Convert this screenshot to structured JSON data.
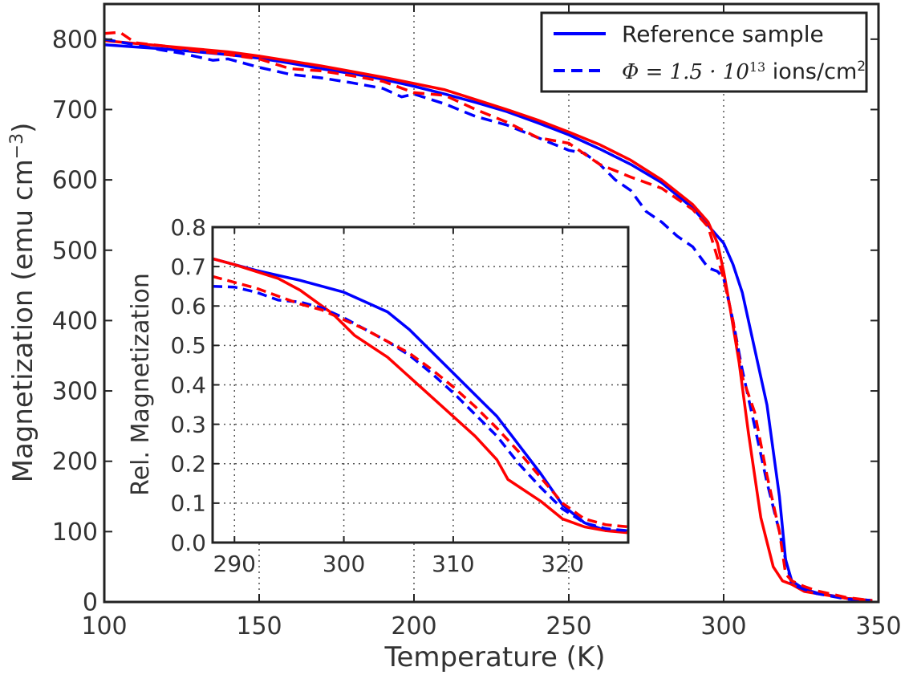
{
  "chart_data": [
    {
      "id": "main",
      "type": "line",
      "xlabel": "Temperature (K)",
      "ylabel_text": "Magnetization (emu cm",
      "ylabel_exp": "−3",
      "ylabel_close": ")",
      "xlim": [
        100,
        350
      ],
      "ylim": [
        0,
        850
      ],
      "xticks": [
        100,
        150,
        200,
        250,
        300,
        350
      ],
      "yticks": [
        0,
        100,
        200,
        300,
        400,
        500,
        600,
        700,
        800
      ],
      "xtick_labels": [
        "100",
        "150",
        "200",
        "250",
        "300",
        "350"
      ],
      "ytick_labels": [
        "0",
        "100",
        "200",
        "300",
        "400",
        "500",
        "600",
        "700",
        "800"
      ],
      "grid": "vertical dotted at x=150, 200, 250, 300",
      "legend": {
        "position": "top-right",
        "entries": [
          {
            "label": "Reference sample",
            "style": "solid"
          },
          {
            "label_prefix": "Φ = 1.5 · 10",
            "label_exp": "13",
            "label_mid": "  ions/cm",
            "label_exp2": "2",
            "style": "dashed"
          }
        ]
      },
      "series": [
        {
          "color": "#0000ff",
          "dash": "solid",
          "x": [
            100,
            110,
            120,
            130,
            140,
            150,
            160,
            170,
            180,
            190,
            200,
            210,
            220,
            230,
            240,
            250,
            260,
            270,
            280,
            290,
            295,
            300,
            303,
            306,
            310,
            314,
            318,
            320,
            322,
            326,
            330,
            340,
            348
          ],
          "y": [
            792,
            789,
            786,
            782,
            778,
            773,
            766,
            758,
            751,
            743,
            733,
            722,
            710,
            697,
            681,
            664,
            644,
            622,
            596,
            560,
            535,
            510,
            480,
            440,
            360,
            280,
            150,
            60,
            30,
            18,
            13,
            5,
            2
          ]
        },
        {
          "color": "#ff0000",
          "dash": "solid",
          "x": [
            100,
            110,
            120,
            130,
            140,
            150,
            160,
            170,
            180,
            190,
            200,
            210,
            220,
            230,
            240,
            250,
            260,
            270,
            280,
            290,
            295,
            298,
            300,
            302,
            305,
            308,
            312,
            316,
            319,
            322,
            326,
            330,
            340,
            348
          ],
          "y": [
            798,
            794,
            790,
            786,
            782,
            776,
            769,
            762,
            754,
            746,
            737,
            728,
            714,
            700,
            685,
            668,
            650,
            628,
            600,
            565,
            540,
            510,
            470,
            420,
            340,
            240,
            120,
            50,
            30,
            25,
            15,
            12,
            5,
            2
          ]
        },
        {
          "color": "#0000ff",
          "dash": "dashed",
          "x": [
            100,
            110,
            118,
            125,
            135,
            140,
            150,
            160,
            170,
            180,
            190,
            196,
            200,
            210,
            220,
            230,
            240,
            250,
            255,
            260,
            265,
            270,
            275,
            280,
            285,
            290,
            295,
            298,
            300,
            303,
            306,
            310,
            314,
            318,
            320,
            322,
            326,
            330,
            340,
            348
          ],
          "y": [
            800,
            792,
            785,
            780,
            770,
            772,
            760,
            750,
            745,
            738,
            730,
            718,
            722,
            708,
            690,
            678,
            660,
            642,
            638,
            622,
            600,
            585,
            555,
            540,
            520,
            505,
            475,
            470,
            460,
            400,
            330,
            250,
            170,
            100,
            60,
            25,
            18,
            12,
            4,
            2
          ]
        },
        {
          "color": "#ff0000",
          "dash": "dashed",
          "x": [
            100,
            105,
            110,
            120,
            130,
            140,
            150,
            160,
            170,
            180,
            190,
            200,
            210,
            220,
            230,
            240,
            250,
            260,
            270,
            280,
            290,
            295,
            300,
            303,
            306,
            310,
            314,
            318,
            320,
            322,
            326,
            330,
            340,
            348
          ],
          "y": [
            808,
            810,
            795,
            790,
            783,
            778,
            772,
            758,
            755,
            748,
            740,
            724,
            720,
            700,
            682,
            660,
            652,
            622,
            604,
            588,
            558,
            533,
            460,
            400,
            320,
            270,
            180,
            100,
            40,
            30,
            22,
            16,
            6,
            2
          ]
        }
      ]
    },
    {
      "id": "inset",
      "type": "line",
      "ylabel": "Rel. Magnetization",
      "xlim": [
        288,
        326
      ],
      "ylim": [
        0,
        0.8
      ],
      "xticks": [
        290,
        300,
        310,
        320
      ],
      "yticks": [
        0,
        0.1,
        0.2,
        0.3,
        0.4,
        0.5,
        0.6,
        0.7,
        0.8
      ],
      "xtick_labels": [
        "290",
        "300",
        "310",
        "320"
      ],
      "ytick_labels": [
        "0.0",
        "0.1",
        "0.2",
        "0.3",
        "0.4",
        "0.5",
        "0.6",
        "0.7",
        "0.8"
      ],
      "grid": true,
      "series": [
        {
          "color": "#0000ff",
          "dash": "solid",
          "x": [
            288,
            292,
            296,
            300,
            304,
            306,
            310,
            314,
            318,
            320,
            322,
            324,
            326
          ],
          "y": [
            0.72,
            0.69,
            0.665,
            0.635,
            0.585,
            0.54,
            0.43,
            0.32,
            0.175,
            0.095,
            0.05,
            0.03,
            0.03
          ]
        },
        {
          "color": "#ff0000",
          "dash": "solid",
          "x": [
            288,
            290,
            294,
            296,
            299,
            301,
            304,
            308,
            312,
            314,
            315,
            318,
            320,
            322,
            324,
            326
          ],
          "y": [
            0.72,
            0.705,
            0.67,
            0.64,
            0.58,
            0.525,
            0.47,
            0.37,
            0.27,
            0.21,
            0.16,
            0.105,
            0.06,
            0.04,
            0.03,
            0.025
          ]
        },
        {
          "color": "#0000ff",
          "dash": "dashed",
          "x": [
            288,
            290,
            292,
            294,
            296,
            298,
            300,
            302,
            304,
            306,
            308,
            310,
            312,
            314,
            316,
            318,
            320,
            322,
            324,
            326
          ],
          "y": [
            0.65,
            0.648,
            0.635,
            0.615,
            0.61,
            0.595,
            0.57,
            0.54,
            0.51,
            0.475,
            0.43,
            0.38,
            0.325,
            0.27,
            0.2,
            0.14,
            0.085,
            0.05,
            0.035,
            0.03
          ]
        },
        {
          "color": "#ff0000",
          "dash": "dashed",
          "x": [
            288,
            290,
            292,
            294,
            296,
            298,
            300,
            302,
            304,
            306,
            308,
            310,
            312,
            314,
            316,
            318,
            320,
            322,
            324,
            326
          ],
          "y": [
            0.675,
            0.66,
            0.645,
            0.625,
            0.605,
            0.59,
            0.565,
            0.54,
            0.51,
            0.48,
            0.44,
            0.395,
            0.345,
            0.29,
            0.23,
            0.165,
            0.1,
            0.06,
            0.045,
            0.04
          ]
        }
      ]
    }
  ]
}
